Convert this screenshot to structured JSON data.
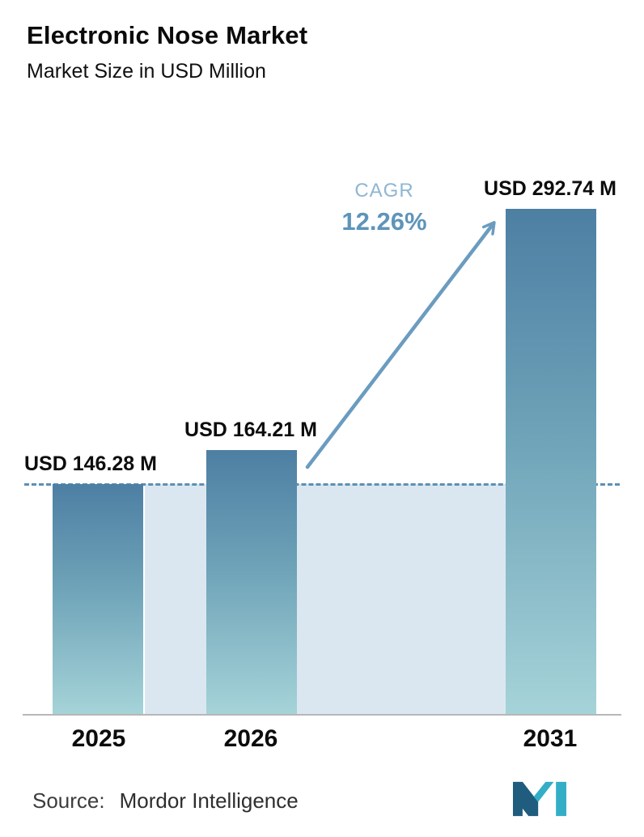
{
  "page": {
    "title": "Electronic Nose Market",
    "subtitle": "Market Size in USD Million"
  },
  "chart_data": {
    "type": "bar",
    "title": "Electronic Nose Market",
    "subtitle": "Market Size in USD Million",
    "categories": [
      "2025",
      "2026",
      "2031"
    ],
    "values": [
      146.28,
      164.21,
      292.74
    ],
    "value_labels": [
      "USD 146.28 M",
      "USD 164.21 M",
      "USD 292.74 M"
    ],
    "ylabel": "Market Size (USD Million)",
    "ylim": [
      0,
      300
    ],
    "grid": false,
    "legend": false,
    "cagr": {
      "label": "CAGR",
      "value": "12.26%"
    },
    "baseline": {
      "value": 146.28,
      "style": "dashed",
      "color": "#5d90b4"
    },
    "colors": {
      "bar_top": "#4d7fa3",
      "bar_bottom": "#a5d3d8",
      "highlight_band": "#dbe7f0",
      "dashed_line": "#5d90b4",
      "arrow": "#6b9cc0",
      "cagr_label": "#8fb6d2",
      "cagr_value": "#5e94ba"
    }
  },
  "footer": {
    "source_label": "Source:",
    "source_value": "Mordor Intelligence",
    "logo": "mordor-intelligence-logo"
  }
}
